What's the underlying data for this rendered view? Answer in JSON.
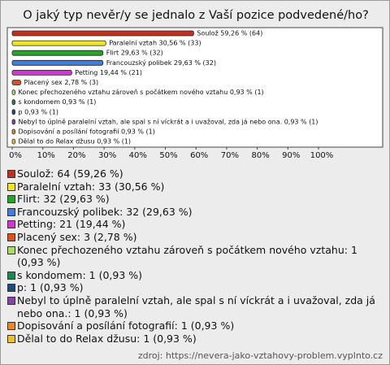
{
  "chart_data": {
    "type": "bar",
    "orientation": "horizontal",
    "title": "O jaký typ nevěr/y se jednalo z Vaší pozice podvedené/ho?",
    "categories": [
      "Soulož",
      "Paralelní vztah",
      "Flirt",
      "Francouzský polibek",
      "Petting",
      "Placený sex",
      "Konec přechozeného vztahu zároveň s počátkem nového vztahu",
      "s kondomem",
      "p",
      "Nebyl to úplně paralelní vztah, ale spal s ní víckrát a i uvažoval, zda já nebo ona.",
      "Dopisování a posílání fotografií",
      "Dělal to do Relax džusu"
    ],
    "values": [
      59.26,
      30.56,
      29.63,
      29.63,
      19.44,
      2.78,
      0.93,
      0.93,
      0.93,
      0.93,
      0.93,
      0.93
    ],
    "value_labels": [
      "Soulož 59,26 % (64)",
      "Paralelní vztah 30,56 % (33)",
      "Flirt 29,63 % (32)",
      "Francouzský polibek 29,63 % (32)",
      "Petting 19,44 % (21)",
      "Placený sex 2,78 % (3)",
      "Konec přechozeného vztahu zároveň s počátkem nového vztahu 0,93 % (1)",
      "s kondomem 0,93 % (1)",
      "p 0,93 % (1)",
      "Nebyl to úplně paralelní vztah, ale spal s ní víckrát a i uvažoval, zda já nebo ona. 0,93 % (1)",
      "Dopisování a posílání fotografií 0,93 % (1)",
      "Dělal to do Relax džusu 0,93 % (1)"
    ],
    "legend_labels": [
      "Soulož: 64 (59,26 %)",
      "Paralelní vztah: 33 (30,56 %)",
      "Flirt: 32 (29,63 %)",
      "Francouzský polibek: 32 (29,63 %)",
      "Petting: 21 (19,44 %)",
      "Placený sex: 3 (2,78 %)",
      "Konec přechozeného vztahu zároveň s počátkem nového vztahu: 1 (0,93 %)",
      "s kondomem: 1 (0,93 %)",
      "p: 1 (0,93 %)",
      "Nebyl to úplně paralelní vztah, ale spal s ní víckrát a i uvažoval, zda já nebo ona.: 1 (0,93 %)",
      "Dopisování a posílání fotografií: 1 (0,93 %)",
      "Dělal to do Relax džusu: 1 (0,93 %)"
    ],
    "colors": [
      "#c0301c",
      "#f2e51e",
      "#22a822",
      "#3f7ee0",
      "#d235d2",
      "#e0501c",
      "#a6e05e",
      "#178a4e",
      "#1c4a86",
      "#8a3fae",
      "#f0861e",
      "#f0c21e"
    ],
    "xlim": [
      0,
      100
    ],
    "xticks": [
      {
        "value": 0,
        "label": "0%"
      },
      {
        "value": 10,
        "label": "10%"
      },
      {
        "value": 20,
        "label": "20%"
      },
      {
        "value": 30,
        "label": "30%"
      },
      {
        "value": 40,
        "label": "40%"
      },
      {
        "value": 50,
        "label": "50%"
      },
      {
        "value": 60,
        "label": "60%"
      },
      {
        "value": 70,
        "label": "70%"
      },
      {
        "value": 80,
        "label": "80%"
      },
      {
        "value": 90,
        "label": "90%"
      },
      {
        "value": 100,
        "label": "100%"
      }
    ],
    "source": "zdroj: https://nevera-jako-vztahovy-problem.vyplnto.cz"
  }
}
